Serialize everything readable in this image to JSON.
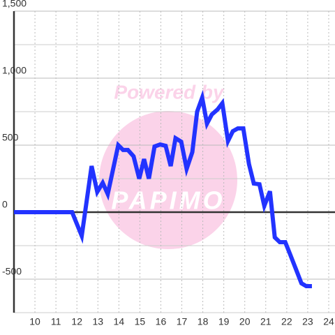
{
  "chart_data": {
    "type": "line",
    "x": [
      9.0,
      11.77,
      12.23,
      12.7,
      12.97,
      13.23,
      13.47,
      13.97,
      14.2,
      14.43,
      14.7,
      14.97,
      15.2,
      15.43,
      15.7,
      15.97,
      16.23,
      16.47,
      16.7,
      16.97,
      17.23,
      17.5,
      17.73,
      17.97,
      18.2,
      18.43,
      18.7,
      18.93,
      19.2,
      19.43,
      19.67,
      19.93,
      20.2,
      20.43,
      20.7,
      20.93,
      21.2,
      21.43,
      21.67,
      21.93,
      22.17,
      22.43,
      22.7,
      22.93,
      23.2
    ],
    "series": [
      {
        "color": "#2233ff",
        "values": [
          0,
          0,
          -177,
          344,
          151,
          219,
          135,
          500,
          464,
          464,
          417,
          250,
          396,
          250,
          490,
          505,
          495,
          344,
          552,
          526,
          323,
          448,
          750,
          854,
          661,
          729,
          766,
          813,
          531,
          604,
          625,
          625,
          359,
          214,
          208,
          47,
          156,
          -188,
          -224,
          -224,
          -318,
          -422,
          -531,
          -552,
          -552
        ]
      }
    ],
    "xlim": [
      9,
      24.3
    ],
    "xticks": [
      10,
      11,
      12,
      13,
      14,
      15,
      16,
      17,
      18,
      19,
      20,
      21,
      22,
      23,
      24
    ],
    "ylim": [
      -750,
      1500
    ],
    "yticks": [
      -500,
      0,
      500,
      {
        "value": 1000,
        "label": "1,000"
      },
      {
        "value": 1500,
        "label": "1,500"
      }
    ],
    "minor_yticks": [
      -750,
      -250,
      250,
      750,
      1250
    ],
    "grid": true,
    "watermark": {
      "text": "Powered by",
      "logo": "PAPIMO"
    }
  }
}
